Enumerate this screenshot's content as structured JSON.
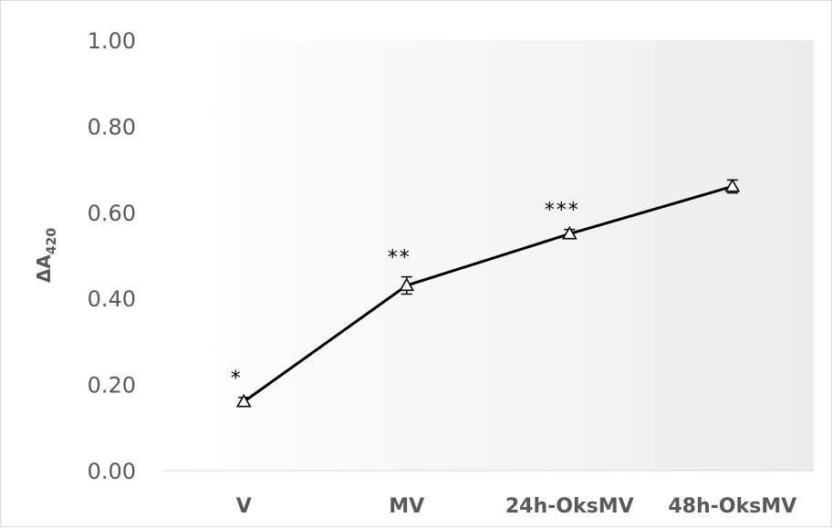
{
  "chart_data": {
    "type": "line",
    "categories": [
      "V",
      "MV",
      "24h-OksMV",
      "48h-OksMV"
    ],
    "series": [
      {
        "values": [
          0.16,
          0.43,
          0.55,
          0.66
        ],
        "error": [
          0.01,
          0.02,
          0.01,
          0.015
        ],
        "marker": "triangle-open",
        "significance": [
          "*",
          "**",
          "***",
          ""
        ]
      }
    ],
    "y_ticks": [
      "0.00",
      "0.20",
      "0.40",
      "0.60",
      "0.80",
      "1.00"
    ],
    "ylim": [
      0,
      1
    ],
    "ylabel_main": "ΔA",
    "ylabel_sub": "420",
    "xlabel": "",
    "title": "",
    "grid": false,
    "legend": "none",
    "colors": {
      "line": "#000000",
      "axis_text": "#595959",
      "plot_bg_start": "#ffffff",
      "plot_bg_end": "#efefef",
      "border": "#d9d9d9"
    }
  }
}
